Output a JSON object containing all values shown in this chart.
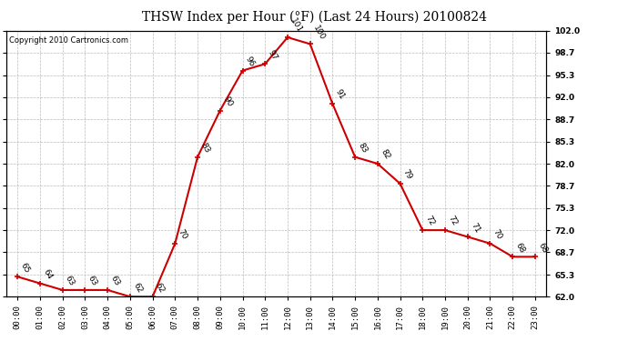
{
  "title": "THSW Index per Hour (°F) (Last 24 Hours) 20100824",
  "copyright": "Copyright 2010 Cartronics.com",
  "hours": [
    "00:00",
    "01:00",
    "02:00",
    "03:00",
    "04:00",
    "05:00",
    "06:00",
    "07:00",
    "08:00",
    "09:00",
    "10:00",
    "11:00",
    "12:00",
    "13:00",
    "14:00",
    "15:00",
    "16:00",
    "17:00",
    "18:00",
    "19:00",
    "20:00",
    "21:00",
    "22:00",
    "23:00"
  ],
  "values": [
    65,
    64,
    63,
    63,
    63,
    62,
    62,
    70,
    83,
    90,
    96,
    97,
    101,
    100,
    91,
    83,
    82,
    79,
    72,
    72,
    71,
    70,
    68,
    68
  ],
  "ylim": [
    62.0,
    102.0
  ],
  "yticks": [
    62.0,
    65.3,
    68.7,
    72.0,
    75.3,
    78.7,
    82.0,
    85.3,
    88.7,
    92.0,
    95.3,
    98.7,
    102.0
  ],
  "line_color": "#cc0000",
  "marker_color": "#cc0000",
  "grid_color": "#bbbbbb",
  "bg_color": "#ffffff",
  "title_fontsize": 10,
  "label_fontsize": 6.5,
  "copyright_fontsize": 6,
  "annot_fontsize": 6.5
}
